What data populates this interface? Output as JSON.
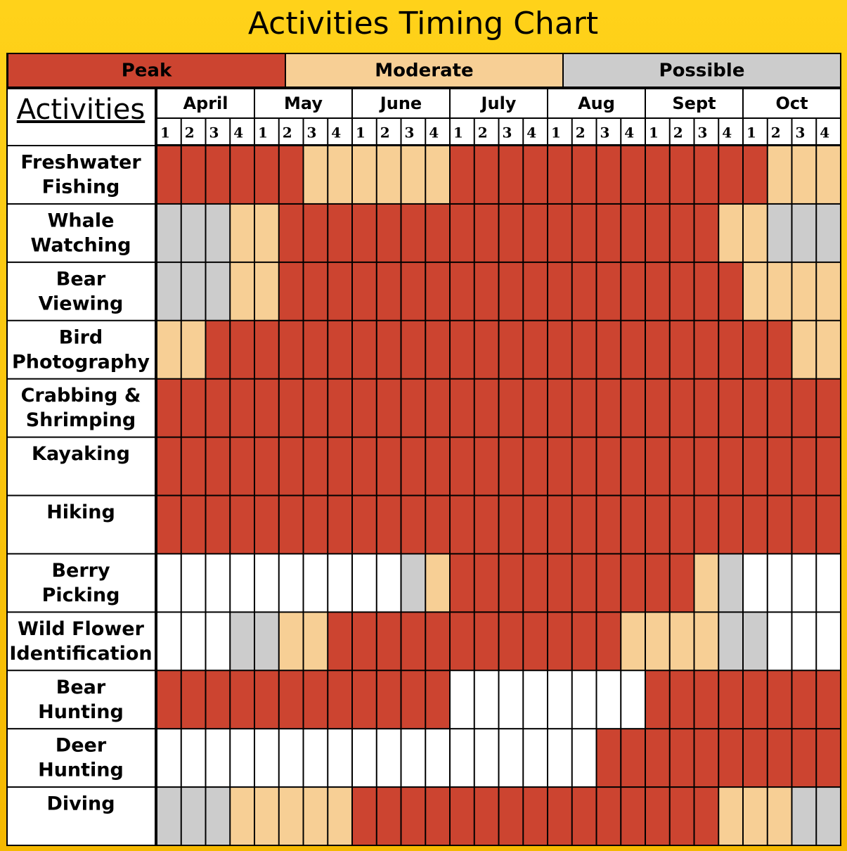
{
  "title": "Activities Timing Chart",
  "legend": [
    {
      "label": "Peak",
      "color": "#cc4430"
    },
    {
      "label": "Moderate",
      "color": "#f7cf95"
    },
    {
      "label": "Possible",
      "color": "#cccccc"
    }
  ],
  "header": "Activities",
  "months": [
    "April",
    "May",
    "June",
    "July",
    "Aug",
    "Sept",
    "Oct"
  ],
  "weeks": [
    "1",
    "2",
    "3",
    "4"
  ],
  "rows": [
    {
      "label": [
        "Freshwater",
        "Fishing"
      ],
      "cells": [
        0,
        0,
        0,
        0,
        0,
        0,
        1,
        1,
        1,
        1,
        1,
        1,
        0,
        0,
        0,
        0,
        0,
        0,
        0,
        0,
        0,
        0,
        0,
        0,
        0,
        1,
        1,
        1
      ]
    },
    {
      "label": [
        "Whale",
        "Watching"
      ],
      "cells": [
        2,
        2,
        2,
        1,
        1,
        0,
        0,
        0,
        0,
        0,
        0,
        0,
        0,
        0,
        0,
        0,
        0,
        0,
        0,
        0,
        0,
        0,
        0,
        1,
        1,
        2,
        2,
        2
      ]
    },
    {
      "label": [
        "Bear",
        "Viewing"
      ],
      "cells": [
        2,
        2,
        2,
        1,
        1,
        0,
        0,
        0,
        0,
        0,
        0,
        0,
        0,
        0,
        0,
        0,
        0,
        0,
        0,
        0,
        0,
        0,
        0,
        0,
        1,
        1,
        1,
        1
      ]
    },
    {
      "label": [
        "Bird",
        "Photography"
      ],
      "cells": [
        1,
        1,
        0,
        0,
        0,
        0,
        0,
        0,
        0,
        0,
        0,
        0,
        0,
        0,
        0,
        0,
        0,
        0,
        0,
        0,
        0,
        0,
        0,
        0,
        0,
        0,
        1,
        1
      ]
    },
    {
      "label": [
        "Crabbing &",
        "Shrimping"
      ],
      "cells": [
        0,
        0,
        0,
        0,
        0,
        0,
        0,
        0,
        0,
        0,
        0,
        0,
        0,
        0,
        0,
        0,
        0,
        0,
        0,
        0,
        0,
        0,
        0,
        0,
        0,
        0,
        0,
        0
      ]
    },
    {
      "label": [
        "Kayaking"
      ],
      "cells": [
        0,
        0,
        0,
        0,
        0,
        0,
        0,
        0,
        0,
        0,
        0,
        0,
        0,
        0,
        0,
        0,
        0,
        0,
        0,
        0,
        0,
        0,
        0,
        0,
        0,
        0,
        0,
        0
      ]
    },
    {
      "label": [
        "Hiking"
      ],
      "cells": [
        0,
        0,
        0,
        0,
        0,
        0,
        0,
        0,
        0,
        0,
        0,
        0,
        0,
        0,
        0,
        0,
        0,
        0,
        0,
        0,
        0,
        0,
        0,
        0,
        0,
        0,
        0,
        0
      ]
    },
    {
      "label": [
        "Berry",
        "Picking"
      ],
      "cells": [
        null,
        null,
        null,
        null,
        null,
        null,
        null,
        null,
        null,
        null,
        2,
        1,
        0,
        0,
        0,
        0,
        0,
        0,
        0,
        0,
        0,
        0,
        1,
        2,
        null,
        null,
        null,
        null
      ]
    },
    {
      "label": [
        "Wild Flower",
        "Identification"
      ],
      "cells": [
        null,
        null,
        null,
        2,
        2,
        1,
        1,
        0,
        0,
        0,
        0,
        0,
        0,
        0,
        0,
        0,
        0,
        0,
        0,
        1,
        1,
        1,
        1,
        2,
        2,
        null,
        null,
        null
      ]
    },
    {
      "label": [
        "Bear",
        "Hunting"
      ],
      "cells": [
        0,
        0,
        0,
        0,
        0,
        0,
        0,
        0,
        0,
        0,
        0,
        0,
        null,
        null,
        null,
        null,
        null,
        null,
        null,
        null,
        0,
        0,
        0,
        0,
        0,
        0,
        0,
        0
      ]
    },
    {
      "label": [
        "Deer",
        "Hunting"
      ],
      "cells": [
        null,
        null,
        null,
        null,
        null,
        null,
        null,
        null,
        null,
        null,
        null,
        null,
        null,
        null,
        null,
        null,
        null,
        null,
        0,
        0,
        0,
        0,
        0,
        0,
        0,
        0,
        0,
        0
      ]
    },
    {
      "label": [
        "Diving"
      ],
      "cells": [
        2,
        2,
        2,
        1,
        1,
        1,
        1,
        1,
        0,
        0,
        0,
        0,
        0,
        0,
        0,
        0,
        0,
        0,
        0,
        0,
        0,
        0,
        0,
        1,
        1,
        1,
        2,
        2
      ]
    }
  ]
}
